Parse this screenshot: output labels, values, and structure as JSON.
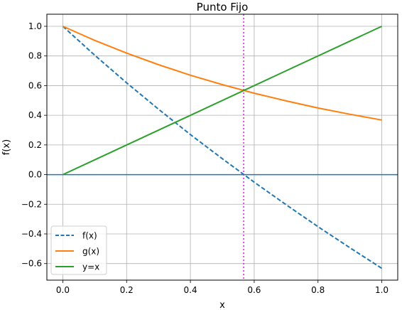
{
  "chart_data": {
    "type": "line",
    "title": "Punto Fijo",
    "xlabel": "x",
    "ylabel": "f(x)",
    "xlim": [
      -0.05,
      1.05
    ],
    "ylim": [
      -0.7117,
      1.0815
    ],
    "xticks": [
      0.0,
      0.2,
      0.4,
      0.6,
      0.8,
      1.0
    ],
    "xtick_labels": [
      "0.0",
      "0.2",
      "0.4",
      "0.6",
      "0.8",
      "1.0"
    ],
    "yticks": [
      -0.6,
      -0.4,
      -0.2,
      0.0,
      0.2,
      0.4,
      0.6,
      0.8,
      1.0
    ],
    "ytick_labels": [
      "−0.6",
      "−0.4",
      "−0.2",
      "0.0",
      "0.2",
      "0.4",
      "0.6",
      "0.8",
      "1.0"
    ],
    "grid": true,
    "legend_position": "lower-left",
    "series": [
      {
        "name": "f(x)",
        "color": "#1f77b4",
        "style": "dashed",
        "x": [
          0.0,
          0.1,
          0.2,
          0.3,
          0.4,
          0.5,
          0.6,
          0.7,
          0.8,
          0.9,
          1.0
        ],
        "y": [
          1.0,
          0.805,
          0.619,
          0.441,
          0.27,
          0.107,
          -0.051,
          -0.203,
          -0.351,
          -0.493,
          -0.632
        ]
      },
      {
        "name": "g(x)",
        "color": "#ff7f0e",
        "style": "solid",
        "x": [
          0.0,
          0.1,
          0.2,
          0.3,
          0.4,
          0.5,
          0.6,
          0.7,
          0.8,
          0.9,
          1.0
        ],
        "y": [
          1.0,
          0.905,
          0.819,
          0.741,
          0.67,
          0.607,
          0.549,
          0.497,
          0.449,
          0.407,
          0.368
        ]
      },
      {
        "name": "y=x",
        "color": "#2ca02c",
        "style": "solid",
        "x": [
          0.0,
          1.0
        ],
        "y": [
          0.0,
          1.0
        ]
      }
    ],
    "reference_lines": [
      {
        "orientation": "horizontal",
        "value": 0.0,
        "color": "#1f77b4",
        "style": "solid"
      },
      {
        "orientation": "vertical",
        "value": 0.567,
        "color": "#ff00ff",
        "style": "dotted"
      }
    ]
  }
}
